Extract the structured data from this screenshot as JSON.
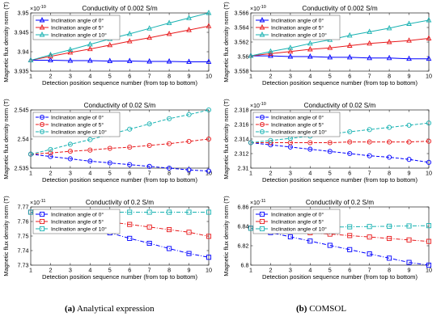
{
  "captions": [
    {
      "tag": "(a)",
      "text": "Analytical expression"
    },
    {
      "tag": "(b)",
      "text": "COMSOL"
    }
  ],
  "colors": {
    "0": "#0000ff",
    "5": "#e8191b",
    "10": "#18b2b2"
  },
  "chart_data": [
    {
      "type": "line",
      "column": "a",
      "row": 0,
      "title": "Conductivity of 0.002 S/m",
      "xlabel": "Detection position sequence number (from top to bottom)",
      "ylabel": "Magnetic flux density norm  (T)",
      "exponent": "×10",
      "exponent_power": "-10",
      "x": [
        1,
        2,
        3,
        4,
        5,
        6,
        7,
        8,
        9,
        10
      ],
      "xlim": [
        1,
        10
      ],
      "ylim": [
        3.935,
        3.95
      ],
      "yticks": [
        3.935,
        3.94,
        3.945,
        3.95
      ],
      "ytick_labels": [
        "3.935",
        "3.94",
        "3.945",
        "3.95"
      ],
      "line_style": "solid",
      "marker": "triangle",
      "series": [
        {
          "name": "Inclination angle of 0°",
          "color": "#0000ff",
          "values": [
            3.9378,
            3.9378,
            3.9377,
            3.9377,
            3.9376,
            3.9376,
            3.9375,
            3.9375,
            3.9374,
            3.9374
          ]
        },
        {
          "name": "Inclination angle of 5°",
          "color": "#e8191b",
          "values": [
            3.9378,
            3.9388,
            3.9398,
            3.9407,
            3.9417,
            3.9427,
            3.9436,
            3.9446,
            3.9456,
            3.9466
          ]
        },
        {
          "name": "Inclination angle of 10°",
          "color": "#18b2b2",
          "values": [
            3.9378,
            3.9392,
            3.9405,
            3.9419,
            3.9433,
            3.9446,
            3.946,
            3.9474,
            3.9487,
            3.95
          ]
        }
      ]
    },
    {
      "type": "line",
      "column": "a",
      "row": 1,
      "title": "Conductivity of 0.02 S/m",
      "xlabel": "Detection position sequence number (from top to bottom)",
      "ylabel": "Magnetic flux density norm  (T)",
      "exponent": "",
      "exponent_power": "",
      "x": [
        1,
        2,
        3,
        4,
        5,
        6,
        7,
        8,
        9,
        10
      ],
      "xlim": [
        1,
        10
      ],
      "ylim": [
        2.535,
        2.545
      ],
      "yticks": [
        2.535,
        2.54,
        2.545
      ],
      "ytick_labels": [
        "2.535",
        "2.54",
        "2.545"
      ],
      "line_style": "dashed",
      "marker": "circle",
      "series": [
        {
          "name": "Inclination angle of 0°",
          "color": "#0000ff",
          "values": [
            2.5374,
            2.537,
            2.5366,
            2.5362,
            2.5359,
            2.5356,
            2.5353,
            2.535,
            2.5347,
            2.5345
          ]
        },
        {
          "name": "Inclination angle of 5°",
          "color": "#e8191b",
          "values": [
            2.5374,
            2.5376,
            2.5379,
            2.5381,
            2.5384,
            2.5386,
            2.5389,
            2.5392,
            2.5396,
            2.54
          ]
        },
        {
          "name": "Inclination angle of 10°",
          "color": "#18b2b2",
          "values": [
            2.5374,
            2.5382,
            2.5391,
            2.5399,
            2.5408,
            2.5417,
            2.5426,
            2.5435,
            2.5442,
            2.545
          ]
        }
      ]
    },
    {
      "type": "line",
      "column": "a",
      "row": 2,
      "title": "Conductivity of 0.2 S/m",
      "xlabel": "Detection position sequence number (from top to bottom)",
      "ylabel": "Magnetic flux density norm  (T)",
      "exponent": "×10",
      "exponent_power": "-11",
      "x": [
        1,
        2,
        3,
        4,
        5,
        6,
        7,
        8,
        9,
        10
      ],
      "xlim": [
        1,
        10
      ],
      "ylim": [
        7.73,
        7.77
      ],
      "yticks": [
        7.73,
        7.74,
        7.75,
        7.76,
        7.77
      ],
      "ytick_labels": [
        "7.73",
        "7.74",
        "7.75",
        "7.76",
        "7.77"
      ],
      "line_style": "dashdot",
      "marker": "square",
      "series": [
        {
          "name": "Inclination angle of 0°",
          "color": "#0000ff",
          "values": [
            7.7664,
            7.7628,
            7.7594,
            7.7558,
            7.7522,
            7.7484,
            7.745,
            7.7414,
            7.738,
            7.7354
          ]
        },
        {
          "name": "Inclination angle of 5°",
          "color": "#e8191b",
          "values": [
            7.7664,
            7.7646,
            7.763,
            7.7612,
            7.7596,
            7.758,
            7.7562,
            7.7544,
            7.7526,
            7.7498
          ]
        },
        {
          "name": "Inclination angle of 10°",
          "color": "#18b2b2",
          "values": [
            7.7664,
            7.7664,
            7.7664,
            7.7664,
            7.7664,
            7.7664,
            7.7664,
            7.7664,
            7.7664,
            7.7664
          ]
        }
      ]
    },
    {
      "type": "line",
      "column": "b",
      "row": 0,
      "title": "Conductivity of 0.002 S/m",
      "xlabel": "Detection position sequence number (from top to bottom)",
      "ylabel": "Magnetic flux density norm  (T)",
      "exponent": "×10",
      "exponent_power": "-10",
      "x": [
        1,
        2,
        3,
        4,
        5,
        6,
        7,
        8,
        9,
        10
      ],
      "xlim": [
        1,
        10
      ],
      "ylim": [
        3.558,
        3.566
      ],
      "yticks": [
        3.558,
        3.56,
        3.562,
        3.564,
        3.566
      ],
      "ytick_labels": [
        "3.558",
        "3.56",
        "3.562",
        "3.564",
        "3.566"
      ],
      "line_style": "solid",
      "marker": "triangle",
      "series": [
        {
          "name": "Inclination angle of 0°",
          "color": "#0000ff",
          "values": [
            3.5601,
            3.5601,
            3.56,
            3.56,
            3.5599,
            3.5599,
            3.5598,
            3.5598,
            3.5597,
            3.5597
          ]
        },
        {
          "name": "Inclination angle of 5°",
          "color": "#e8191b",
          "values": [
            3.5601,
            3.5604,
            3.5607,
            3.561,
            3.5612,
            3.5615,
            3.5618,
            3.562,
            3.5622,
            3.5625
          ]
        },
        {
          "name": "Inclination angle of 10°",
          "color": "#18b2b2",
          "values": [
            3.5601,
            3.5607,
            3.5612,
            3.5618,
            3.5623,
            3.5629,
            3.5634,
            3.5639,
            3.5645,
            3.565
          ]
        }
      ]
    },
    {
      "type": "line",
      "column": "b",
      "row": 1,
      "title": "Conductivity of 0.02 S/m",
      "xlabel": "Detection position sequence number (from top to bottom)",
      "ylabel": "Magnetic flux density norm  (T)",
      "exponent": "×10",
      "exponent_power": "-10",
      "x": [
        1,
        2,
        3,
        4,
        5,
        6,
        7,
        8,
        9,
        10
      ],
      "xlim": [
        1,
        10
      ],
      "ylim": [
        2.31,
        2.318
      ],
      "yticks": [
        2.31,
        2.312,
        2.314,
        2.316,
        2.318
      ],
      "ytick_labels": [
        "2.31",
        "2.312",
        "2.314",
        "2.316",
        "2.318"
      ],
      "line_style": "dashed",
      "marker": "circle",
      "series": [
        {
          "name": "Inclination angle of 0°",
          "color": "#0000ff",
          "values": [
            2.3135,
            2.3132,
            2.3129,
            2.3126,
            2.3123,
            2.312,
            2.3117,
            2.3115,
            2.3112,
            2.3108
          ]
        },
        {
          "name": "Inclination angle of 5°",
          "color": "#e8191b",
          "values": [
            2.3135,
            2.3135,
            2.3135,
            2.3135,
            2.3135,
            2.3136,
            2.3136,
            2.3136,
            2.3136,
            2.3137
          ]
        },
        {
          "name": "Inclination angle of 10°",
          "color": "#18b2b2",
          "values": [
            2.3135,
            2.3138,
            2.3141,
            2.3144,
            2.3147,
            2.315,
            2.3153,
            2.3156,
            2.3159,
            2.3162
          ]
        }
      ]
    },
    {
      "type": "line",
      "column": "b",
      "row": 2,
      "title": "Conductivity of 0.2 S/m",
      "xlabel": "Detection position sequence number (from top to bottom)",
      "ylabel": "Magnetic flux density norm  (T)",
      "exponent": "×10",
      "exponent_power": "-11",
      "x": [
        1,
        2,
        3,
        4,
        5,
        6,
        7,
        8,
        9,
        10
      ],
      "xlim": [
        1,
        10
      ],
      "ylim": [
        6.8,
        6.86
      ],
      "yticks": [
        6.8,
        6.82,
        6.84,
        6.86
      ],
      "ytick_labels": [
        "6.8",
        "6.82",
        "6.84",
        "6.86"
      ],
      "line_style": "dashdot",
      "marker": "square",
      "series": [
        {
          "name": "Inclination angle of 0°",
          "color": "#0000ff",
          "values": [
            6.838,
            6.8336,
            6.8292,
            6.8248,
            6.8204,
            6.816,
            6.8116,
            6.8072,
            6.8028,
            6.8
          ]
        },
        {
          "name": "Inclination angle of 5°",
          "color": "#e8191b",
          "values": [
            6.838,
            6.8365,
            6.835,
            6.8335,
            6.832,
            6.8305,
            6.829,
            6.8275,
            6.826,
            6.8245
          ]
        },
        {
          "name": "Inclination angle of 10°",
          "color": "#18b2b2",
          "values": [
            6.838,
            6.8383,
            6.8386,
            6.8389,
            6.8392,
            6.8395,
            6.8398,
            6.8401,
            6.8404,
            6.8407
          ]
        }
      ]
    }
  ]
}
